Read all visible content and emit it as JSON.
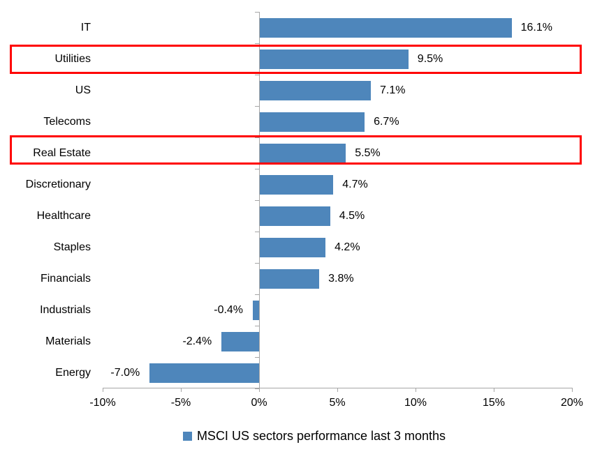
{
  "chart_data": {
    "type": "bar",
    "orientation": "horizontal",
    "categories": [
      "IT",
      "Utilities",
      "US",
      "Telecoms",
      "Real Estate",
      "Discretionary",
      "Healthcare",
      "Staples",
      "Financials",
      "Industrials",
      "Materials",
      "Energy"
    ],
    "values": [
      16.1,
      9.5,
      7.1,
      6.7,
      5.5,
      4.7,
      4.5,
      4.2,
      3.8,
      -0.4,
      -2.4,
      -7.0
    ],
    "value_labels": [
      "16.1%",
      "9.5%",
      "7.1%",
      "6.7%",
      "5.5%",
      "4.7%",
      "4.5%",
      "4.2%",
      "3.8%",
      "-0.4%",
      "-2.4%",
      "-7.0%"
    ],
    "highlighted_categories": [
      "Utilities",
      "Real Estate"
    ],
    "x_tick_labels": [
      "-10%",
      "-5%",
      "0%",
      "5%",
      "10%",
      "15%",
      "20%"
    ],
    "x_tick_values": [
      -10,
      -5,
      0,
      5,
      10,
      15,
      20
    ],
    "x_range": [
      -10,
      20
    ],
    "grid": "off",
    "legend": "MSCI US sectors performance last 3 months",
    "legend_position": "bottom-center",
    "colors": {
      "bar": "#4e86bb",
      "highlight_border": "#ff0000",
      "axis": "#a6a6a6",
      "text": "#000000"
    }
  }
}
